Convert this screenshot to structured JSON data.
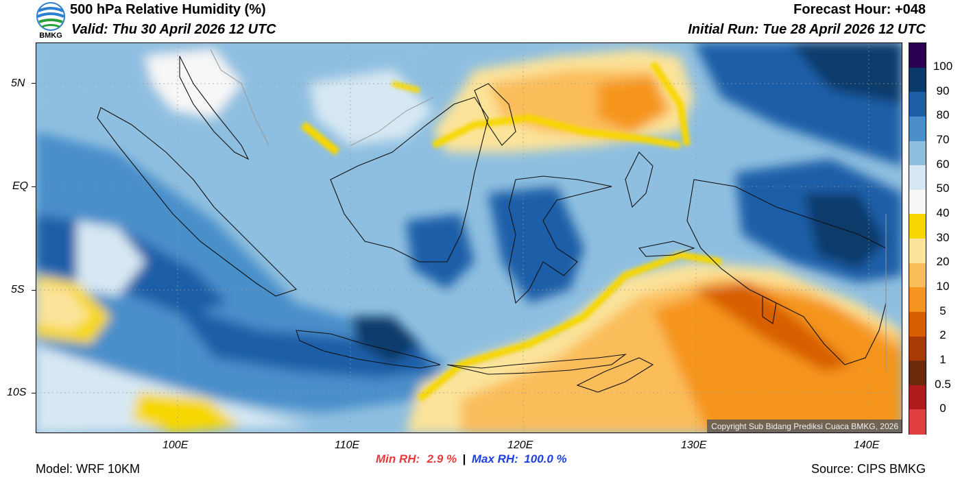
{
  "header": {
    "title": "500 hPa Relative Humidity (%)",
    "valid": "Valid: Thu 30 April 2026 12 UTC",
    "forecast_hour": "Forecast Hour: +048",
    "initial_run": "Initial Run: Tue 28 April 2026 12 UTC",
    "logo_text": "BMKG"
  },
  "map": {
    "lat_ticks": [
      "5N",
      "EQ",
      "5S",
      "10S"
    ],
    "lon_ticks": [
      "100E",
      "110E",
      "120E",
      "130E",
      "140E"
    ],
    "copyright": "Copyright Sub Bidang Prediksi Cuaca BMKG, 2026"
  },
  "colorbar": {
    "levels": [
      "100",
      "90",
      "80",
      "70",
      "60",
      "50",
      "40",
      "30",
      "20",
      "10",
      "5",
      "2",
      "1",
      "0.5",
      "0"
    ],
    "colors": [
      "#2a0050",
      "#0a3a6a",
      "#1f5fa8",
      "#4a8fca",
      "#8fbfe0",
      "#d6e8f3",
      "#f7f7f7",
      "#f7d700",
      "#fbe39a",
      "#fbbd5a",
      "#f5951f",
      "#d85f00",
      "#a83a05",
      "#6b2a0c",
      "#b01a1a",
      "#e04040"
    ]
  },
  "stats": {
    "min_label": "Min RH:",
    "min_value": "2.9 %",
    "separator": "|",
    "max_label": "Max RH:",
    "max_value": "100.0 %",
    "min_color": "#e33b3b",
    "max_color": "#1f3fe0"
  },
  "footer": {
    "model": "Model: WRF 10KM",
    "source": "Source: CIPS BMKG"
  }
}
